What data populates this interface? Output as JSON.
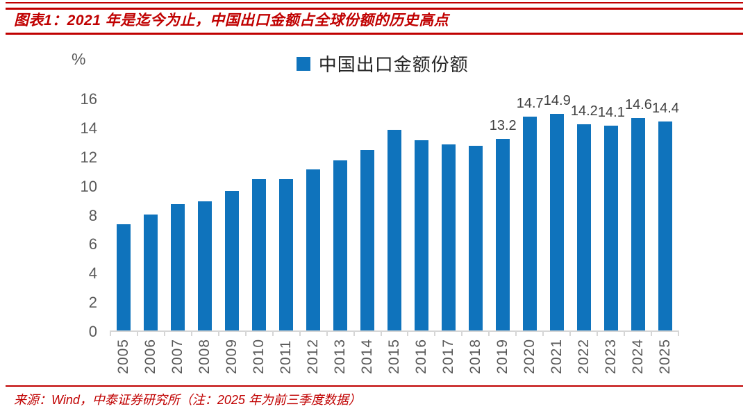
{
  "page": {
    "accent_color": "#C00000",
    "background_color": "#FFFFFF"
  },
  "header": {
    "title": "图表1：2021 年是迄今为止，中国出口金额占全球份额的历史高点"
  },
  "legend": {
    "label": "中国出口金额份额",
    "marker_color": "#0F73BC"
  },
  "chart_data": {
    "type": "bar",
    "title": "中国出口金额份额",
    "unit_label": "%",
    "xlabel": "",
    "ylabel": "%",
    "categories": [
      "2005",
      "2006",
      "2007",
      "2008",
      "2009",
      "2010",
      "2011",
      "2012",
      "2013",
      "2014",
      "2015",
      "2016",
      "2017",
      "2018",
      "2019",
      "2020",
      "2021",
      "2022",
      "2023",
      "2024",
      "2025"
    ],
    "values": [
      7.3,
      8.0,
      8.7,
      8.9,
      9.6,
      10.4,
      10.4,
      11.1,
      11.7,
      12.4,
      13.8,
      13.1,
      12.8,
      12.7,
      13.2,
      14.7,
      14.9,
      14.2,
      14.1,
      14.6,
      14.4
    ],
    "data_labels": [
      "",
      "",
      "",
      "",
      "",
      "",
      "",
      "",
      "",
      "",
      "",
      "",
      "",
      "",
      "13.2",
      "14.7",
      "14.9",
      "14.2",
      "14.1",
      "14.6",
      "14.4"
    ],
    "ylim": [
      0,
      16
    ],
    "yticks": [
      0,
      2,
      4,
      6,
      8,
      10,
      12,
      14,
      16
    ],
    "bar_color": "#0F73BC",
    "axis_color": "#D6D6D6",
    "tick_label_color": "#595959",
    "data_label_color": "#404040",
    "grid": false,
    "legend_position": "top-center"
  },
  "footer": {
    "source_text": "来源：Wind，中泰证券研究所（注：2025 年为前三季度数据）"
  }
}
